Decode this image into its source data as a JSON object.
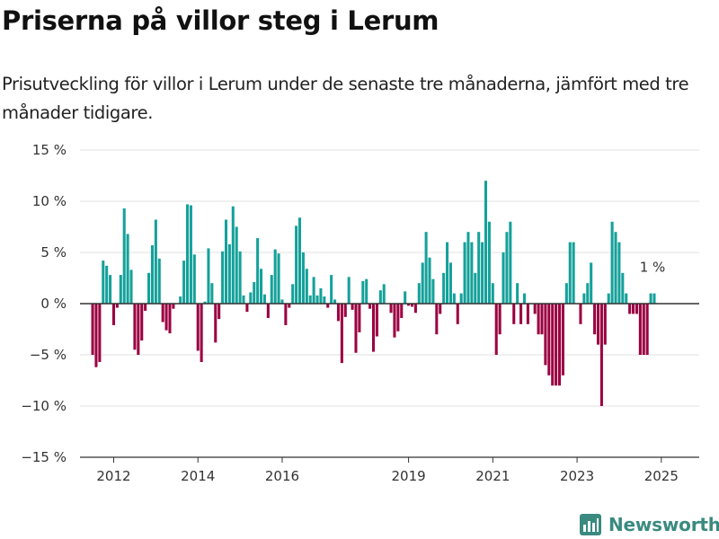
{
  "title": "Priserna på villor steg i Lerum",
  "subtitle": "Prisutveckling för villor i Lerum under de senaste tre månaderna, jämfört med tre månader tidigare.",
  "brand": "Newsworthy",
  "colors": {
    "positive": "#14a19a",
    "negative": "#9b0041",
    "brand": "#3a8a80"
  },
  "chart_data": {
    "type": "bar",
    "x_start_year": 2011.5,
    "x_step": 0.08333,
    "xlim": [
      2011.2,
      2025.9
    ],
    "x_ticks": [
      2012,
      2014,
      2016,
      2019,
      2021,
      2023,
      2025
    ],
    "x_tick_labels": [
      "2012",
      "2014",
      "2016",
      "2019",
      "2021",
      "2023",
      "2025"
    ],
    "ylim": [
      -15,
      15
    ],
    "y_ticks": [
      15,
      10,
      5,
      0,
      -5,
      -10,
      -15
    ],
    "y_tick_labels": [
      "15 %",
      "10 %",
      "5 %",
      "0 %",
      "−5 %",
      "−10 %",
      "−15 %"
    ],
    "values": [
      -5.0,
      -6.2,
      -5.7,
      4.2,
      3.7,
      2.8,
      -2.1,
      -0.4,
      2.8,
      9.3,
      6.8,
      3.3,
      -4.5,
      -5.0,
      -3.6,
      -0.7,
      3.0,
      5.7,
      8.2,
      4.4,
      -1.8,
      -2.6,
      -2.9,
      -0.5,
      0.0,
      0.7,
      4.2,
      9.7,
      9.6,
      4.8,
      -4.6,
      -5.7,
      0.2,
      5.4,
      2.0,
      -3.8,
      -1.5,
      5.1,
      8.2,
      5.8,
      9.5,
      7.5,
      5.1,
      0.8,
      -0.8,
      1.1,
      2.1,
      6.4,
      3.4,
      0.9,
      -1.4,
      2.8,
      5.3,
      4.9,
      0.4,
      -2.1,
      -0.4,
      1.9,
      7.6,
      8.4,
      5.0,
      3.4,
      0.8,
      2.6,
      0.8,
      1.5,
      0.7,
      -0.4,
      2.8,
      0.4,
      -1.7,
      -5.8,
      -1.3,
      2.6,
      -0.6,
      -4.8,
      -2.8,
      2.2,
      2.4,
      -0.5,
      -4.7,
      -3.2,
      1.3,
      1.9,
      0.0,
      -0.9,
      -3.3,
      -2.7,
      -1.4,
      1.2,
      -0.2,
      -0.3,
      -0.9,
      2.0,
      4.0,
      7.0,
      4.5,
      2.4,
      -3.0,
      -1.0,
      3.0,
      6.0,
      4.0,
      1.0,
      -2.0,
      1.0,
      6.0,
      7.0,
      6.0,
      3.0,
      7.0,
      6.0,
      12.0,
      8.0,
      2.0,
      -5.0,
      -3.0,
      5.0,
      7.0,
      8.0,
      -2.0,
      2.0,
      -2.0,
      1.0,
      -2.0,
      0.0,
      -1.0,
      -3.0,
      -3.0,
      -6.0,
      -7.0,
      -8.0,
      -8.0,
      -8.0,
      -7.0,
      2.0,
      6.0,
      6.0,
      0.0,
      -2.0,
      1.0,
      2.0,
      4.0,
      -3.0,
      -4.0,
      -10.0,
      -4.0,
      1.0,
      8.0,
      7.0,
      6.0,
      3.0,
      1.0,
      -1.0,
      -1.0,
      -1.0,
      -5.0,
      -5.0,
      -5.0,
      1.0,
      1.0
    ],
    "annotation": {
      "text": "1 %"
    }
  }
}
